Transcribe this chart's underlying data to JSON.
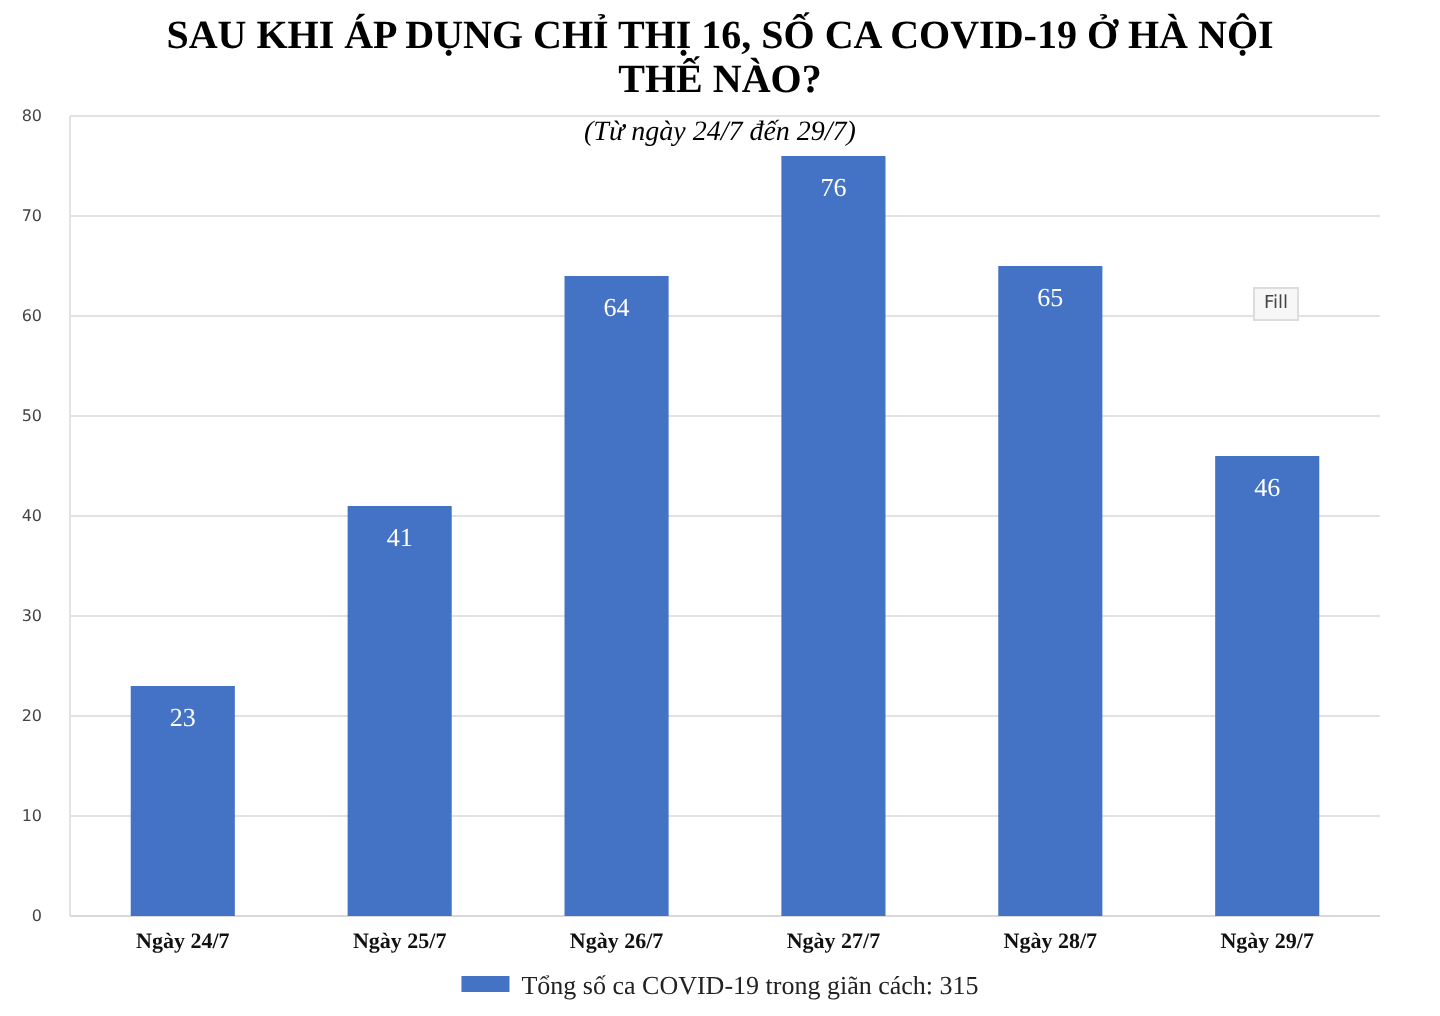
{
  "chart_data": {
    "type": "bar",
    "title": "SAU KHI ÁP DỤNG CHỈ THỊ 16, SỐ CA COVID-19 Ở HÀ NỘI THẾ NÀO?",
    "subtitle": "(Từ ngày 24/7 đến 29/7)",
    "categories": [
      "Ngày 24/7",
      "Ngày 25/7",
      "Ngày 26/7",
      "Ngày 27/7",
      "Ngày 28/7",
      "Ngày 29/7"
    ],
    "series": [
      {
        "name": "Tổng số ca COVID-19 trong giãn cách: 315",
        "color": "#4472c4",
        "values": [
          23,
          41,
          64,
          76,
          65,
          46
        ]
      }
    ],
    "ylim": [
      0,
      80
    ],
    "yticks": [
      0,
      10,
      20,
      30,
      40,
      50,
      60,
      70,
      80
    ],
    "grid": "y",
    "legend": "bottom",
    "data_labels": true,
    "annotations": [
      "Fill"
    ]
  }
}
